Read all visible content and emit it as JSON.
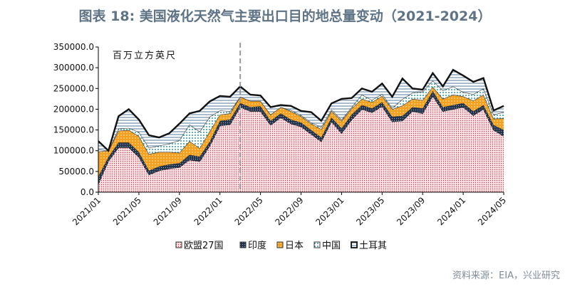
{
  "title": "图表 18: 美国液化天然气主要出口目的地总量变动（2021-2024）",
  "source": "资料来源：EIA，兴业研究",
  "chart_data": {
    "type": "area",
    "title": "图表 18: 美国液化天然气主要出口目的地总量变动（2021-2024）",
    "unit_label": "百万立方英尺",
    "ylim": [
      0,
      350000
    ],
    "y_ticks": [
      "0.0",
      "50000.0",
      "100000.0",
      "150000.0",
      "200000.0",
      "250000.0",
      "300000.0",
      "350000.0"
    ],
    "x_tick_labels": [
      "2021/01",
      "2021/05",
      "2021/09",
      "2022/01",
      "2022/05",
      "2022/09",
      "2023/01",
      "2023/05",
      "2023/09",
      "2024/01",
      "2024/05"
    ],
    "x": [
      "2021/01",
      "2021/02",
      "2021/03",
      "2021/04",
      "2021/05",
      "2021/06",
      "2021/07",
      "2021/08",
      "2021/09",
      "2021/10",
      "2021/11",
      "2021/12",
      "2022/01",
      "2022/02",
      "2022/03",
      "2022/04",
      "2022/05",
      "2022/06",
      "2022/07",
      "2022/08",
      "2022/09",
      "2022/10",
      "2022/11",
      "2022/12",
      "2023/01",
      "2023/02",
      "2023/03",
      "2023/04",
      "2023/05",
      "2023/06",
      "2023/07",
      "2023/08",
      "2023/09",
      "2023/10",
      "2023/11",
      "2023/12",
      "2024/01",
      "2024/02",
      "2024/03",
      "2024/04",
      "2024/05"
    ],
    "reference_line_x": "2022/03",
    "legend_position": "bottom",
    "series": [
      {
        "name": "欧盟27国",
        "color": "#f4c4c9",
        "pattern": "dots-red",
        "values": [
          20000,
          75000,
          108000,
          108000,
          85000,
          42000,
          52000,
          57000,
          60000,
          78000,
          74000,
          112000,
          160000,
          163000,
          205000,
          195000,
          195000,
          162000,
          180000,
          165000,
          158000,
          140000,
          122000,
          170000,
          142000,
          175000,
          200000,
          192000,
          207000,
          170000,
          172000,
          195000,
          190000,
          232000,
          195000,
          200000,
          205000,
          185000,
          200000,
          150000,
          135000
        ]
      },
      {
        "name": "印度",
        "color": "#2b3a4f",
        "pattern": "dots-navy",
        "values": [
          18000,
          10000,
          12000,
          12000,
          12000,
          10000,
          10000,
          10000,
          10000,
          12000,
          12000,
          10000,
          12000,
          12000,
          10000,
          10000,
          12000,
          10000,
          10000,
          10000,
          10000,
          10000,
          10000,
          10000,
          12000,
          12000,
          10000,
          10000,
          10000,
          12000,
          12000,
          10000,
          12000,
          12000,
          10000,
          10000,
          10000,
          10000,
          10000,
          12000,
          15000
        ]
      },
      {
        "name": "日本",
        "color": "#f2a020",
        "pattern": "dots-orange",
        "values": [
          60000,
          15000,
          28000,
          30000,
          38000,
          40000,
          35000,
          30000,
          25000,
          33000,
          20000,
          25000,
          15000,
          15000,
          15000,
          15000,
          13000,
          15000,
          15000,
          20000,
          15000,
          15000,
          20000,
          16000,
          18000,
          15000,
          15000,
          15000,
          15000,
          18000,
          25000,
          20000,
          20000,
          10000,
          20000,
          25000,
          16000,
          26000,
          25000,
          15000,
          28000
        ]
      },
      {
        "name": "中国",
        "color": "#2a9d9a",
        "pattern": "dots-teal",
        "values": [
          5000,
          0,
          5000,
          5000,
          10000,
          15000,
          15000,
          20000,
          30000,
          40000,
          40000,
          35000,
          10000,
          5000,
          0,
          0,
          0,
          0,
          0,
          3000,
          3000,
          3000,
          5000,
          3000,
          3000,
          3000,
          10000,
          5000,
          5000,
          3000,
          15000,
          15000,
          20000,
          15000,
          20000,
          20000,
          10000,
          15000,
          15000,
          10000,
          15000
        ]
      },
      {
        "name": "土耳其",
        "color": "#a8bccd",
        "pattern": "stripes-blue",
        "values": [
          20000,
          0,
          30000,
          45000,
          30000,
          30000,
          20000,
          25000,
          40000,
          27000,
          50000,
          37000,
          35000,
          35000,
          25000,
          15000,
          13000,
          18000,
          5000,
          10000,
          10000,
          25000,
          15000,
          15000,
          50000,
          22000,
          15000,
          20000,
          25000,
          27000,
          50000,
          10000,
          5000,
          18000,
          10000,
          40000,
          40000,
          30000,
          25000,
          10000,
          15000
        ]
      }
    ]
  },
  "legend": [
    {
      "label": "欧盟27国"
    },
    {
      "label": "印度"
    },
    {
      "label": "日本"
    },
    {
      "label": "中国"
    },
    {
      "label": "土耳其"
    }
  ]
}
